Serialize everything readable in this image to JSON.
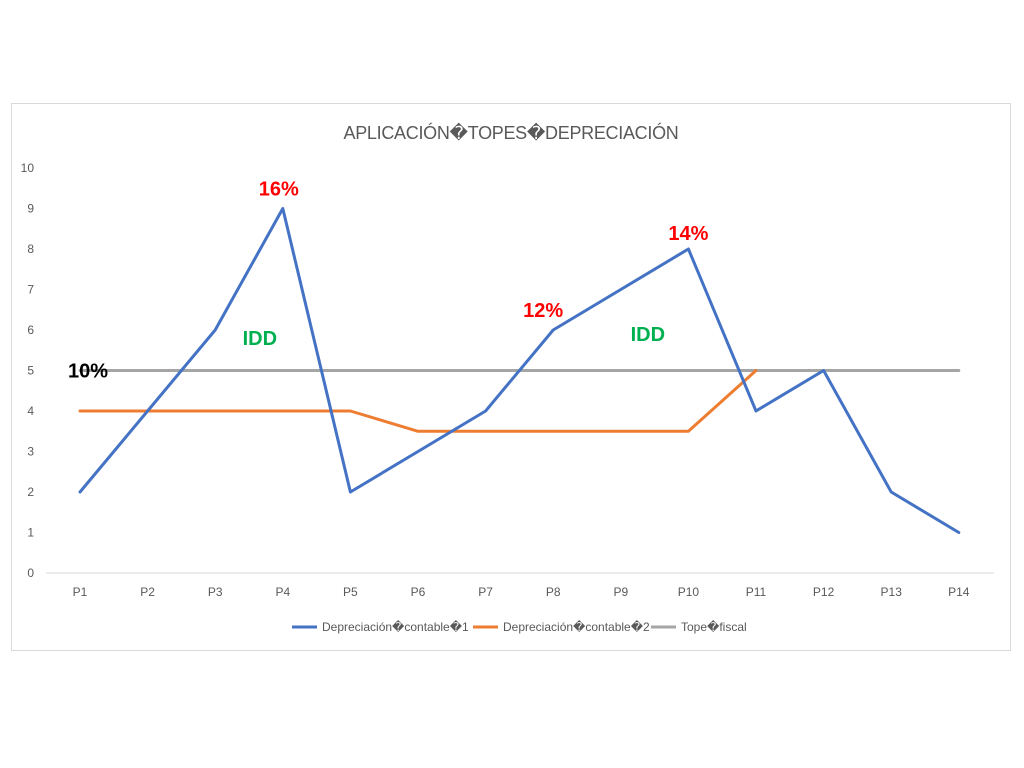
{
  "chart_data": {
    "type": "line",
    "title": "APLICACIÓN�TOPES�DEPRECIACIÓN",
    "categories": [
      "P1",
      "P2",
      "P3",
      "P4",
      "P5",
      "P6",
      "P7",
      "P8",
      "P9",
      "P10",
      "P11",
      "P12",
      "P13",
      "P14"
    ],
    "ylim": [
      0,
      10
    ],
    "yticks": [
      "0",
      "1",
      "2",
      "3",
      "4",
      "5",
      "6",
      "7",
      "8",
      "9",
      "10"
    ],
    "grid": false,
    "legend_position": "bottom",
    "series": [
      {
        "name": "Depreciación�contable�1",
        "color": "#4472c4",
        "values": [
          2,
          4,
          6,
          9,
          2,
          3,
          4,
          6,
          7,
          8,
          4,
          5,
          2,
          1
        ]
      },
      {
        "name": "Depreciación�contable�2",
        "color": "#ed7d31",
        "values": [
          4,
          4,
          4,
          4,
          4,
          3.5,
          3.5,
          3.5,
          3.5,
          3.5,
          5,
          null,
          null,
          null
        ]
      },
      {
        "name": "Tope�fiscal",
        "color": "#a5a5a5",
        "values": [
          5,
          5,
          5,
          5,
          5,
          5,
          5,
          5,
          5,
          5,
          5,
          5,
          5,
          5
        ]
      }
    ],
    "annotations": [
      {
        "text": "16%",
        "color": "#ff0000",
        "x": "P4",
        "y": 9.5
      },
      {
        "text": "14%",
        "color": "#ff0000",
        "x": "P10",
        "y": 8.4
      },
      {
        "text": "12%",
        "color": "#ff0000",
        "x": "P8",
        "y": 6.5
      },
      {
        "text": "10%",
        "color": "#000000",
        "x": "P1",
        "y": 5.0
      },
      {
        "text": "IDD",
        "color": "#00b050",
        "x": "P4",
        "y": 5.8
      },
      {
        "text": "IDD",
        "color": "#00b050",
        "x": "P9",
        "y": 5.9
      }
    ]
  }
}
